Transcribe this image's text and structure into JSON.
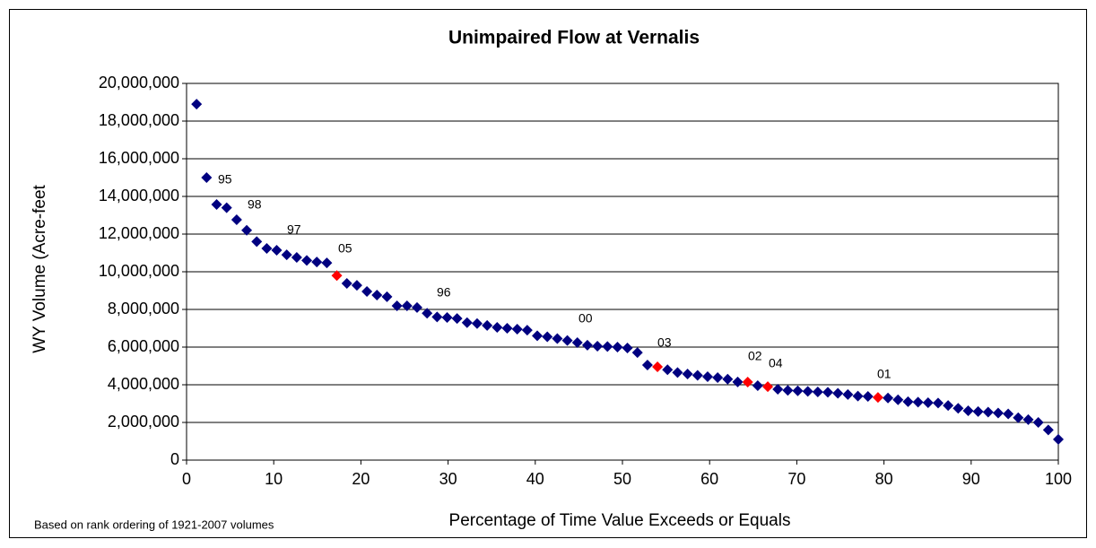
{
  "chart_data": {
    "type": "scatter",
    "title": "Unimpaired Flow at Vernalis",
    "xlabel": "Percentage of Time Value Exceeds or Equals",
    "ylabel": "WY Volume (Acre-feet",
    "footnote": "Based on rank ordering of 1921-2007 volumes",
    "annotations": [
      "95",
      "98",
      "97",
      "05",
      "96",
      "00",
      "03",
      "02",
      "04",
      "01"
    ],
    "series": [
      {
        "color": "#000080",
        "x": [
          1.15,
          2.3,
          3.45,
          4.6,
          5.75,
          6.9,
          8.05,
          9.2,
          10.34,
          11.49,
          12.64,
          13.79,
          14.94,
          16.09,
          18.39,
          19.54,
          20.69,
          21.84,
          22.99,
          24.14,
          25.29,
          26.44,
          27.59,
          28.74,
          29.89,
          31.03,
          32.18,
          33.33,
          34.48,
          35.63,
          36.78,
          37.93,
          39.08,
          40.23,
          41.38,
          42.53,
          43.68,
          44.83,
          45.98,
          47.13,
          48.28,
          49.43,
          50.57,
          51.72,
          52.87,
          55.17,
          56.32,
          57.47,
          58.62,
          59.77,
          60.92,
          62.07,
          63.22,
          65.52,
          67.82,
          68.97,
          70.11,
          71.26,
          72.41,
          73.56,
          74.71,
          75.86,
          77.01,
          78.16,
          80.46,
          81.61,
          82.76,
          83.91,
          85.06,
          86.21,
          87.36,
          88.51,
          89.66,
          90.8,
          91.95,
          93.1,
          94.25,
          95.4,
          96.55,
          97.7,
          98.85,
          100
        ],
        "values": [
          18900000,
          15000000,
          13570000,
          13400000,
          12760000,
          12200000,
          11600000,
          11240000,
          11140000,
          10900000,
          10760000,
          10600000,
          10520000,
          10470000,
          9380000,
          9280000,
          8950000,
          8760000,
          8670000,
          8190000,
          8190000,
          8100000,
          7800000,
          7600000,
          7570000,
          7520000,
          7300000,
          7250000,
          7150000,
          7050000,
          7000000,
          6950000,
          6900000,
          6600000,
          6550000,
          6450000,
          6350000,
          6240000,
          6100000,
          6050000,
          6030000,
          6000000,
          5950000,
          5710000,
          5050000,
          4800000,
          4650000,
          4570000,
          4500000,
          4430000,
          4380000,
          4300000,
          4150000,
          3950000,
          3760000,
          3700000,
          3680000,
          3650000,
          3620000,
          3600000,
          3550000,
          3480000,
          3400000,
          3380000,
          3300000,
          3200000,
          3100000,
          3080000,
          3050000,
          3030000,
          2900000,
          2750000,
          2620000,
          2580000,
          2550000,
          2500000,
          2450000,
          2250000,
          2150000,
          2000000,
          1600000,
          1100000
        ]
      },
      {
        "color": "#ff0000",
        "x": [
          17.24,
          54.02,
          64.37,
          66.67,
          79.31
        ],
        "values": [
          9800000,
          4950000,
          4140000,
          3900000,
          3330000
        ]
      }
    ],
    "xlim": [
      0,
      100
    ],
    "xticks": [
      0,
      10,
      20,
      30,
      40,
      50,
      60,
      70,
      80,
      90,
      100
    ],
    "ylim": [
      0,
      20000000
    ],
    "yticks": [
      {
        "value": 0,
        "label": "0"
      },
      {
        "value": 2000000,
        "label": "2,000,000"
      },
      {
        "value": 4000000,
        "label": "4,000,000"
      },
      {
        "value": 6000000,
        "label": "6,000,000"
      },
      {
        "value": 8000000,
        "label": "8,000,000"
      },
      {
        "value": 10000000,
        "label": "10,000,000"
      },
      {
        "value": 12000000,
        "label": "12,000,000"
      },
      {
        "value": 14000000,
        "label": "14,000,000"
      },
      {
        "value": 16000000,
        "label": "16,000,000"
      },
      {
        "value": 18000000,
        "label": "18,000,000"
      },
      {
        "value": 20000000,
        "label": "20,000,000"
      }
    ],
    "grid": true
  }
}
